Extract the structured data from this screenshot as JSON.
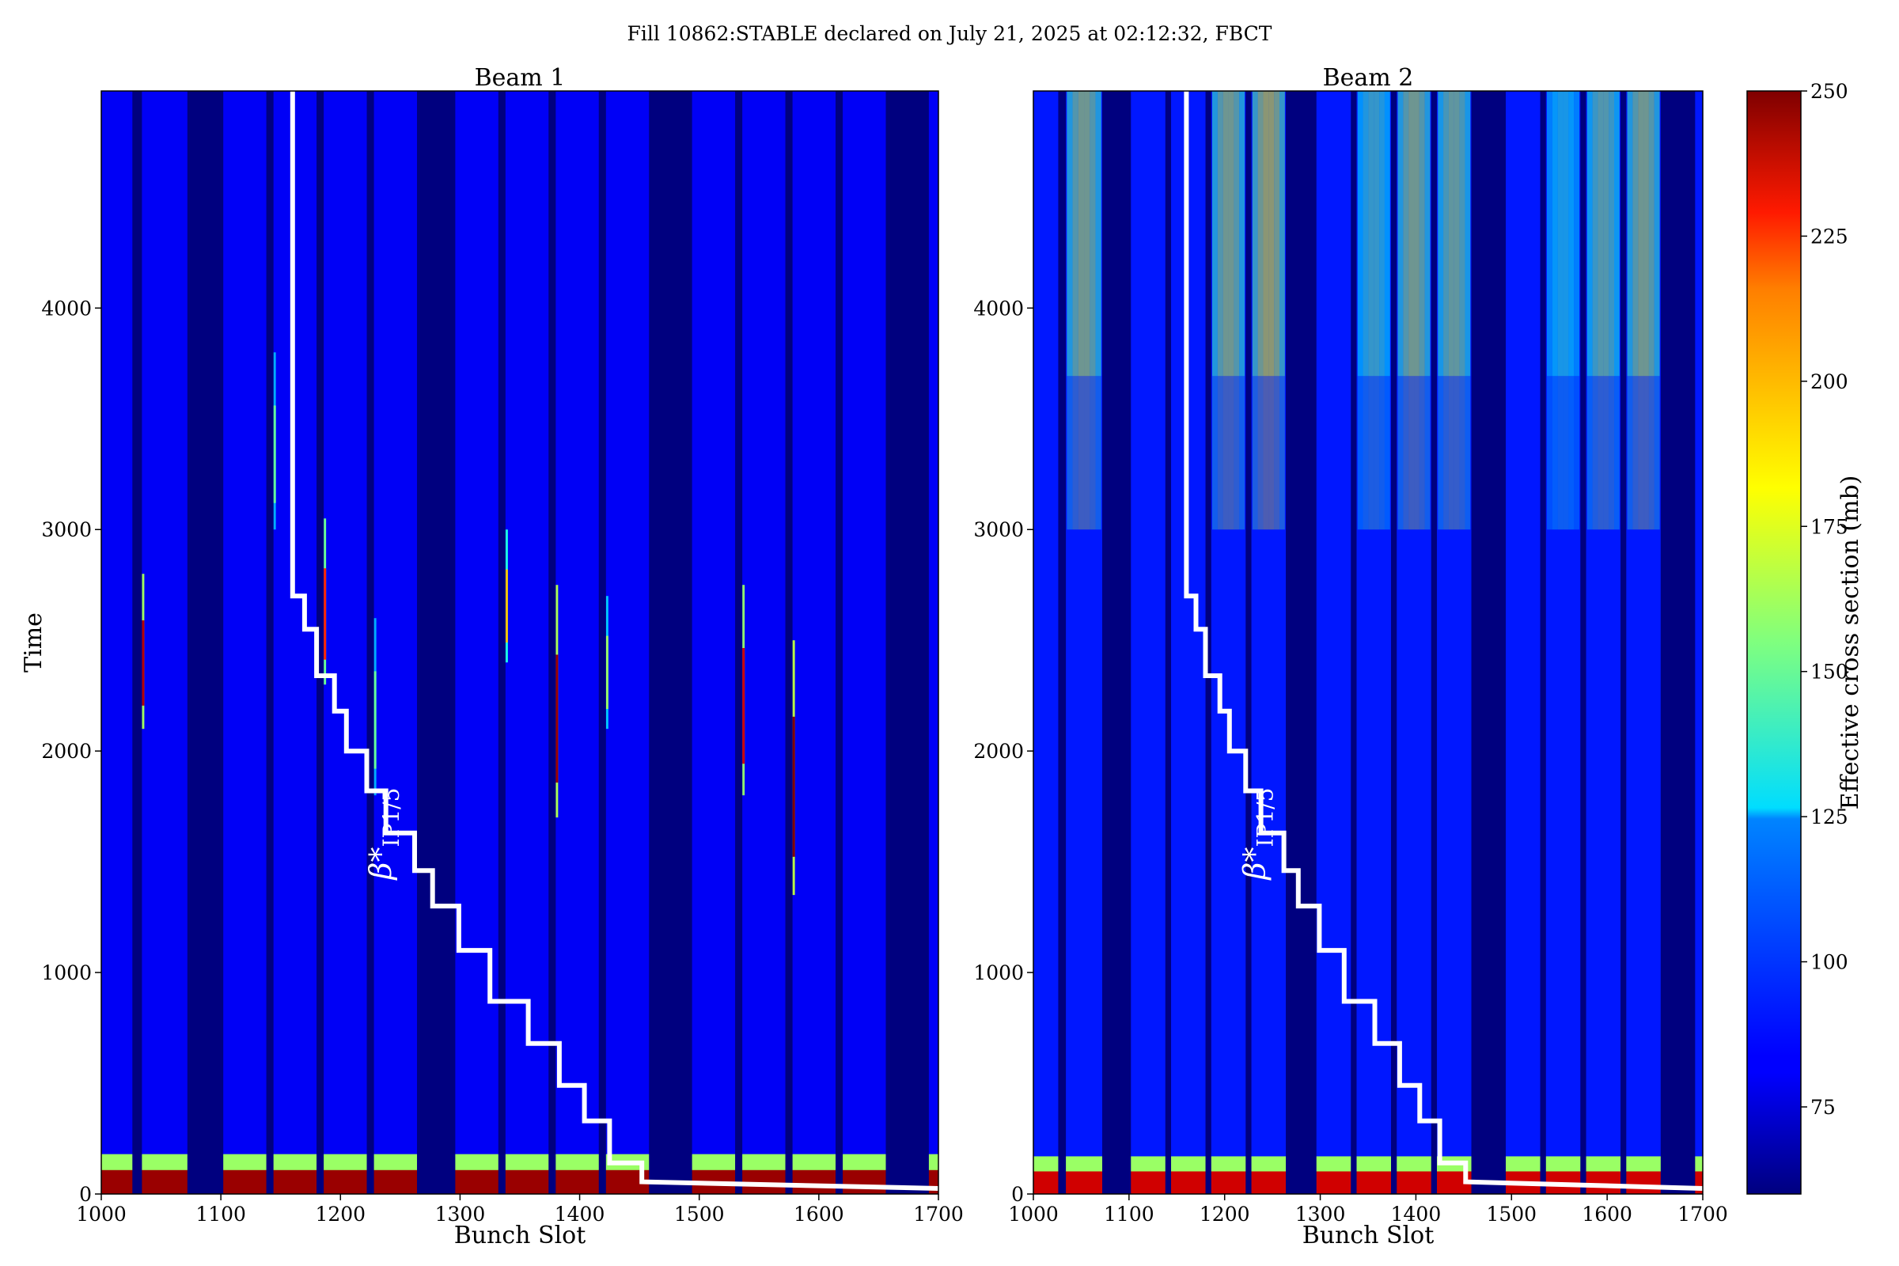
{
  "suptitle": "Fill 10862:STABLE declared on July 21, 2025 at 02:12:32, FBCT",
  "colorbar": {
    "label": "Effective cross section (mb)",
    "range": [
      60,
      250
    ],
    "ticks": [
      75,
      100,
      125,
      150,
      175,
      200,
      225,
      250
    ],
    "colormap": "jet"
  },
  "chart_data": [
    {
      "type": "heatmap",
      "title": "Beam 1",
      "xlabel": "Bunch Slot",
      "ylabel": "Time",
      "xlim": [
        1000,
        1700
      ],
      "ylim": [
        0,
        4980
      ],
      "xticks": [
        1000,
        1100,
        1200,
        1300,
        1400,
        1500,
        1600,
        1700
      ],
      "yticks": [
        0,
        1000,
        2000,
        3000,
        4000
      ],
      "background_value_mb": 82,
      "empty_bunch_gaps": [
        [
          1026,
          1034
        ],
        [
          1072,
          1102
        ],
        [
          1138,
          1144
        ],
        [
          1180,
          1186
        ],
        [
          1222,
          1228
        ],
        [
          1264,
          1296
        ],
        [
          1332,
          1338
        ],
        [
          1374,
          1380
        ],
        [
          1416,
          1422
        ],
        [
          1458,
          1494
        ],
        [
          1530,
          1536
        ],
        [
          1572,
          1578
        ],
        [
          1614,
          1620
        ],
        [
          1656,
          1692
        ]
      ],
      "high_cross_section_bunches": [
        {
          "slot": 1035,
          "time_range": [
            2100,
            2800
          ],
          "peak_mb": 240
        },
        {
          "slot": 1145,
          "time_range": [
            3000,
            3800
          ],
          "peak_mb": 150
        },
        {
          "slot": 1187,
          "time_range": [
            2300,
            3050
          ],
          "peak_mb": 220
        },
        {
          "slot": 1229,
          "time_range": [
            1800,
            2600
          ],
          "peak_mb": 150
        },
        {
          "slot": 1339,
          "time_range": [
            2400,
            3000
          ],
          "peak_mb": 190
        },
        {
          "slot": 1381,
          "time_range": [
            1700,
            2750
          ],
          "peak_mb": 245
        },
        {
          "slot": 1423,
          "time_range": [
            2100,
            2700
          ],
          "peak_mb": 160
        },
        {
          "slot": 1537,
          "time_range": [
            1800,
            2750
          ],
          "peak_mb": 235
        },
        {
          "slot": 1579,
          "time_range": [
            1350,
            2500
          ],
          "peak_mb": 250
        }
      ],
      "startup_band": {
        "time_range": [
          0,
          180
        ],
        "value_mb": 245
      },
      "beta_star_overlay": {
        "label": "β*",
        "label_sub": "IP1/5",
        "color": "#ffffff",
        "steps": [
          [
            1160,
            4980
          ],
          [
            1160,
            2700
          ],
          [
            1170,
            2700
          ],
          [
            1170,
            2550
          ],
          [
            1180,
            2550
          ],
          [
            1180,
            2340
          ],
          [
            1195,
            2340
          ],
          [
            1195,
            2180
          ],
          [
            1205,
            2180
          ],
          [
            1205,
            2000
          ],
          [
            1222,
            2000
          ],
          [
            1222,
            1820
          ],
          [
            1238,
            1820
          ],
          [
            1238,
            1630
          ],
          [
            1262,
            1630
          ],
          [
            1262,
            1460
          ],
          [
            1277,
            1460
          ],
          [
            1277,
            1300
          ],
          [
            1299,
            1300
          ],
          [
            1299,
            1100
          ],
          [
            1325,
            1100
          ],
          [
            1325,
            870
          ],
          [
            1357,
            870
          ],
          [
            1357,
            680
          ],
          [
            1383,
            680
          ],
          [
            1383,
            490
          ],
          [
            1404,
            490
          ],
          [
            1404,
            330
          ],
          [
            1425,
            330
          ],
          [
            1425,
            140
          ],
          [
            1452,
            140
          ],
          [
            1452,
            55
          ],
          [
            1700,
            25
          ]
        ]
      }
    },
    {
      "type": "heatmap",
      "title": "Beam 2",
      "xlabel": "Bunch Slot",
      "ylabel": "",
      "xlim": [
        1000,
        1700
      ],
      "ylim": [
        0,
        4980
      ],
      "xticks": [
        1000,
        1100,
        1200,
        1300,
        1400,
        1500,
        1600,
        1700
      ],
      "yticks": [
        0,
        1000,
        2000,
        3000,
        4000
      ],
      "background_value_mb": 88,
      "empty_bunch_gaps": [
        [
          1026,
          1034
        ],
        [
          1072,
          1102
        ],
        [
          1138,
          1144
        ],
        [
          1180,
          1186
        ],
        [
          1222,
          1228
        ],
        [
          1264,
          1296
        ],
        [
          1332,
          1338
        ],
        [
          1374,
          1380
        ],
        [
          1416,
          1422
        ],
        [
          1458,
          1494
        ],
        [
          1530,
          1536
        ],
        [
          1572,
          1578
        ],
        [
          1614,
          1620
        ],
        [
          1656,
          1692
        ]
      ],
      "elevated_trains": [
        {
          "range": [
            1035,
            1071
          ],
          "peak_mb": 170
        },
        {
          "range": [
            1187,
            1221
          ],
          "peak_mb": 170
        },
        {
          "range": [
            1229,
            1263
          ],
          "peak_mb": 180
        },
        {
          "range": [
            1339,
            1373
          ],
          "peak_mb": 150
        },
        {
          "range": [
            1381,
            1415
          ],
          "peak_mb": 170
        },
        {
          "range": [
            1423,
            1457
          ],
          "peak_mb": 165
        },
        {
          "range": [
            1537,
            1571
          ],
          "peak_mb": 140
        },
        {
          "range": [
            1579,
            1613
          ],
          "peak_mb": 160
        },
        {
          "range": [
            1621,
            1655
          ],
          "peak_mb": 170
        }
      ],
      "elevated_time_range": [
        3000,
        4980
      ],
      "startup_band": {
        "time_range": [
          0,
          170
        ],
        "value_mb": 235
      },
      "beta_star_overlay": {
        "label": "β*",
        "label_sub": "IP1/5",
        "color": "#ffffff",
        "steps": [
          [
            1160,
            4980
          ],
          [
            1160,
            2700
          ],
          [
            1170,
            2700
          ],
          [
            1170,
            2550
          ],
          [
            1180,
            2550
          ],
          [
            1180,
            2340
          ],
          [
            1195,
            2340
          ],
          [
            1195,
            2180
          ],
          [
            1205,
            2180
          ],
          [
            1205,
            2000
          ],
          [
            1222,
            2000
          ],
          [
            1222,
            1820
          ],
          [
            1238,
            1820
          ],
          [
            1238,
            1630
          ],
          [
            1262,
            1630
          ],
          [
            1262,
            1460
          ],
          [
            1277,
            1460
          ],
          [
            1277,
            1300
          ],
          [
            1299,
            1300
          ],
          [
            1299,
            1100
          ],
          [
            1325,
            1100
          ],
          [
            1325,
            870
          ],
          [
            1357,
            870
          ],
          [
            1357,
            680
          ],
          [
            1383,
            680
          ],
          [
            1383,
            490
          ],
          [
            1404,
            490
          ],
          [
            1404,
            330
          ],
          [
            1425,
            330
          ],
          [
            1425,
            140
          ],
          [
            1452,
            140
          ],
          [
            1452,
            55
          ],
          [
            1700,
            25
          ]
        ]
      }
    }
  ]
}
